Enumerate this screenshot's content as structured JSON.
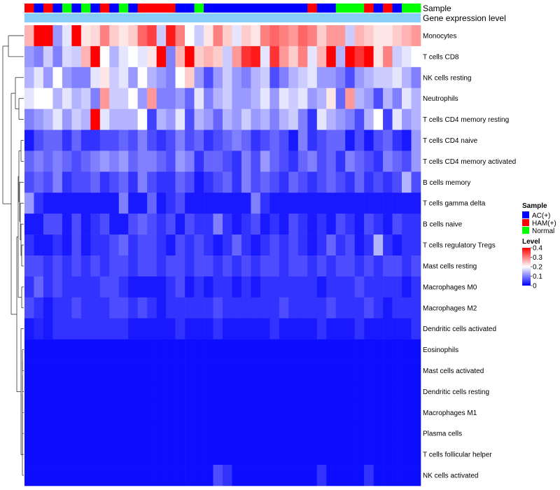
{
  "chart_data": {
    "type": "heatmap",
    "annotation_labels": {
      "sample": "Sample",
      "expression": "Gene expression level"
    },
    "rows": [
      "Monocytes",
      "T cells CD8",
      "NK cells resting",
      "Neutrophils",
      "T cells CD4 memory resting",
      "T cells CD4 naive",
      "T cells CD4 memory activated",
      "B cells memory",
      "T cells gamma delta",
      "B cells naive",
      "T cells regulatory  Tregs",
      "Mast cells resting",
      "Macrophages M0",
      "Macrophages M2",
      "Dendritic cells activated",
      "Eosinophils",
      "Mast cells activated",
      "Dendritic cells resting",
      "Macrophages M1",
      "Plasma cells",
      "T cells follicular helper",
      "NK cells activated"
    ],
    "sample_groups": [
      "HAM(+)",
      "AC(+)",
      "HAM(+)",
      "AC(+)",
      "Normal",
      "AC(+)",
      "Normal",
      "AC(+)",
      "HAM(+)",
      "AC(+)",
      "Normal",
      "AC(+)",
      "HAM(+)",
      "HAM(+)",
      "HAM(+)",
      "HAM(+)",
      "AC(+)",
      "AC(+)",
      "Normal",
      "AC(+)",
      "AC(+)",
      "AC(+)",
      "AC(+)",
      "AC(+)",
      "AC(+)",
      "AC(+)",
      "AC(+)",
      "AC(+)",
      "AC(+)",
      "AC(+)",
      "HAM(+)",
      "AC(+)",
      "AC(+)",
      "Normal",
      "Normal",
      "Normal",
      "HAM(+)",
      "AC(+)",
      "HAM(+)",
      "AC(+)",
      "Normal",
      "Normal"
    ],
    "values": [
      [
        0.26,
        0.4,
        0.4,
        0.12,
        0.18,
        0.4,
        0.22,
        0.23,
        0.3,
        0.24,
        0.22,
        0.24,
        0.32,
        0.35,
        0.16,
        0.38,
        0.3,
        0.2,
        0.16,
        0.22,
        0.3,
        0.24,
        0.18,
        0.24,
        0.22,
        0.3,
        0.32,
        0.3,
        0.28,
        0.32,
        0.3,
        0.24,
        0.28,
        0.28,
        0.16,
        0.26,
        0.24,
        0.22,
        0.22,
        0.24,
        0.26,
        0.28
      ],
      [
        0.12,
        0.1,
        0.16,
        0.1,
        0.17,
        0.16,
        0.26,
        0.4,
        0.2,
        0.14,
        0.18,
        0.2,
        0.18,
        0.22,
        0.4,
        0.1,
        0.26,
        0.4,
        0.24,
        0.26,
        0.24,
        0.16,
        0.28,
        0.36,
        0.38,
        0.18,
        0.36,
        0.28,
        0.24,
        0.3,
        0.18,
        0.26,
        0.4,
        0.14,
        0.4,
        0.36,
        0.4,
        0.22,
        0.3,
        0.16,
        0.18,
        0.2
      ],
      [
        0.14,
        0.18,
        0.12,
        0.2,
        0.12,
        0.1,
        0.1,
        0.18,
        0.22,
        0.16,
        0.18,
        0.12,
        0.2,
        0.14,
        0.12,
        0.1,
        0.2,
        0.24,
        0.12,
        0.06,
        0.12,
        0.16,
        0.12,
        0.1,
        0.14,
        0.16,
        0.06,
        0.1,
        0.14,
        0.16,
        0.18,
        0.12,
        0.12,
        0.1,
        0.06,
        0.12,
        0.14,
        0.16,
        0.16,
        0.18,
        0.14,
        0.1
      ],
      [
        0.18,
        0.2,
        0.2,
        0.14,
        0.18,
        0.14,
        0.16,
        0.1,
        0.28,
        0.16,
        0.16,
        0.2,
        0.12,
        0.28,
        0.1,
        0.1,
        0.12,
        0.08,
        0.18,
        0.1,
        0.14,
        0.16,
        0.12,
        0.12,
        0.14,
        0.18,
        0.12,
        0.18,
        0.16,
        0.18,
        0.12,
        0.14,
        0.22,
        0.08,
        0.28,
        0.14,
        0.12,
        0.06,
        0.14,
        0.1,
        0.18,
        0.14
      ],
      [
        0.1,
        0.12,
        0.14,
        0.18,
        0.12,
        0.16,
        0.14,
        0.4,
        0.18,
        0.14,
        0.14,
        0.14,
        0.2,
        0.05,
        0.14,
        0.12,
        0.18,
        0.06,
        0.14,
        0.12,
        0.08,
        0.14,
        0.12,
        0.16,
        0.12,
        0.14,
        0.1,
        0.14,
        0.16,
        0.1,
        0.04,
        0.18,
        0.14,
        0.12,
        0.1,
        0.06,
        0.14,
        0.2,
        0.05,
        0.18,
        0.12,
        0.14
      ],
      [
        0.02,
        0.06,
        0.08,
        0.08,
        0.04,
        0.08,
        0.04,
        0.04,
        0.06,
        0.06,
        0.08,
        0.06,
        0.1,
        0.06,
        0.04,
        0.06,
        0.1,
        0.06,
        0.08,
        0.04,
        0.06,
        0.08,
        0.1,
        0.08,
        0.04,
        0.06,
        0.08,
        0.06,
        0.02,
        0.1,
        0.04,
        0.06,
        0.08,
        0.08,
        0.02,
        0.06,
        0.02,
        0.06,
        0.08,
        0.04,
        0.02,
        0.12
      ],
      [
        0.08,
        0.1,
        0.08,
        0.1,
        0.08,
        0.06,
        0.08,
        0.1,
        0.12,
        0.1,
        0.12,
        0.08,
        0.1,
        0.1,
        0.08,
        0.06,
        0.12,
        0.1,
        0.04,
        0.08,
        0.08,
        0.06,
        0.04,
        0.1,
        0.06,
        0.12,
        0.08,
        0.06,
        0.04,
        0.08,
        0.1,
        0.06,
        0.08,
        0.04,
        0.1,
        0.08,
        0.06,
        0.04,
        0.1,
        0.08,
        0.06,
        0.12
      ],
      [
        0.06,
        0.08,
        0.06,
        0.1,
        0.04,
        0.06,
        0.06,
        0.08,
        0.04,
        0.06,
        0.08,
        0.04,
        0.1,
        0.06,
        0.04,
        0.04,
        0.08,
        0.06,
        0.02,
        0.04,
        0.06,
        0.08,
        0.04,
        0.1,
        0.06,
        0.08,
        0.06,
        0.04,
        0.08,
        0.06,
        0.04,
        0.06,
        0.08,
        0.06,
        0.04,
        0.08,
        0.04,
        0.06,
        0.04,
        0.06,
        0.14,
        0.06
      ],
      [
        0.12,
        0.04,
        0.02,
        0.02,
        0.02,
        0.02,
        0.02,
        0.02,
        0.02,
        0.02,
        0.1,
        0.02,
        0.02,
        0.08,
        0.02,
        0.04,
        0.06,
        0.02,
        0.02,
        0.02,
        0.02,
        0.02,
        0.02,
        0.02,
        0.1,
        0.04,
        0.02,
        0.02,
        0.02,
        0.02,
        0.02,
        0.02,
        0.02,
        0.02,
        0.02,
        0.02,
        0.02,
        0.02,
        0.02,
        0.02,
        0.02,
        0.02
      ],
      [
        0.02,
        0.02,
        0.06,
        0.06,
        0.02,
        0.06,
        0.02,
        0.04,
        0.06,
        0.02,
        0.02,
        0.06,
        0.08,
        0.06,
        0.04,
        0.06,
        0.02,
        0.06,
        0.04,
        0.04,
        0.1,
        0.04,
        0.02,
        0.04,
        0.06,
        0.02,
        0.04,
        0.02,
        0.06,
        0.04,
        0.02,
        0.04,
        0.02,
        0.06,
        0.04,
        0.02,
        0.06,
        0.04,
        0.02,
        0.06,
        0.04,
        0.04
      ],
      [
        0.04,
        0.02,
        0.02,
        0.04,
        0.02,
        0.06,
        0.02,
        0.04,
        0.04,
        0.06,
        0.08,
        0.04,
        0.06,
        0.06,
        0.04,
        0.02,
        0.06,
        0.04,
        0.06,
        0.04,
        0.02,
        0.04,
        0.08,
        0.04,
        0.02,
        0.04,
        0.06,
        0.04,
        0.06,
        0.04,
        0.02,
        0.04,
        0.08,
        0.04,
        0.06,
        0.02,
        0.04,
        0.14,
        0.04,
        0.02,
        0.04,
        0.04
      ],
      [
        0.06,
        0.06,
        0.04,
        0.06,
        0.04,
        0.06,
        0.04,
        0.06,
        0.04,
        0.06,
        0.06,
        0.04,
        0.06,
        0.06,
        0.04,
        0.06,
        0.06,
        0.04,
        0.06,
        0.06,
        0.04,
        0.06,
        0.04,
        0.06,
        0.04,
        0.06,
        0.06,
        0.04,
        0.06,
        0.06,
        0.04,
        0.06,
        0.04,
        0.06,
        0.06,
        0.04,
        0.06,
        0.04,
        0.06,
        0.06,
        0.04,
        0.06
      ],
      [
        0.04,
        0.08,
        0.04,
        0.06,
        0.04,
        0.04,
        0.04,
        0.04,
        0.06,
        0.06,
        0.04,
        0.02,
        0.02,
        0.02,
        0.02,
        0.04,
        0.06,
        0.02,
        0.04,
        0.02,
        0.04,
        0.04,
        0.02,
        0.04,
        0.02,
        0.04,
        0.04,
        0.04,
        0.04,
        0.04,
        0.04,
        0.02,
        0.04,
        0.04,
        0.04,
        0.06,
        0.04,
        0.04,
        0.04,
        0.04,
        0.02,
        0.04
      ],
      [
        0.06,
        0.04,
        0.02,
        0.04,
        0.04,
        0.06,
        0.04,
        0.04,
        0.04,
        0.06,
        0.06,
        0.04,
        0.06,
        0.04,
        0.02,
        0.04,
        0.04,
        0.04,
        0.04,
        0.04,
        0.06,
        0.04,
        0.04,
        0.04,
        0.04,
        0.04,
        0.04,
        0.06,
        0.04,
        0.04,
        0.04,
        0.04,
        0.06,
        0.04,
        0.04,
        0.04,
        0.06,
        0.04,
        0.02,
        0.04,
        0.04,
        0.04
      ],
      [
        0.02,
        0.03,
        0.02,
        0.04,
        0.04,
        0.04,
        0.04,
        0.04,
        0.04,
        0.04,
        0.04,
        0.02,
        0.02,
        0.02,
        0.02,
        0.02,
        0.04,
        0.02,
        0.02,
        0.02,
        0.04,
        0.02,
        0.02,
        0.02,
        0.02,
        0.02,
        0.04,
        0.02,
        0.02,
        0.02,
        0.02,
        0.04,
        0.02,
        0.02,
        0.02,
        0.04,
        0.02,
        0.02,
        0.02,
        0.02,
        0.02,
        0.04
      ],
      [
        0.01,
        0.01,
        0.01,
        0.01,
        0.01,
        0.01,
        0.01,
        0.01,
        0.01,
        0.01,
        0.01,
        0.01,
        0.01,
        0.01,
        0.01,
        0.01,
        0.01,
        0.01,
        0.01,
        0.01,
        0.01,
        0.01,
        0.01,
        0.01,
        0.01,
        0.01,
        0.01,
        0.01,
        0.01,
        0.01,
        0.01,
        0.01,
        0.01,
        0.01,
        0.01,
        0.01,
        0.01,
        0.01,
        0.01,
        0.01,
        0.01,
        0.01
      ],
      [
        0.01,
        0.01,
        0.01,
        0.01,
        0.01,
        0.01,
        0.01,
        0.01,
        0.01,
        0.01,
        0.01,
        0.01,
        0.01,
        0.01,
        0.01,
        0.01,
        0.01,
        0.01,
        0.01,
        0.01,
        0.01,
        0.01,
        0.01,
        0.01,
        0.01,
        0.01,
        0.01,
        0.01,
        0.01,
        0.01,
        0.01,
        0.01,
        0.01,
        0.01,
        0.01,
        0.01,
        0.01,
        0.01,
        0.01,
        0.01,
        0.01,
        0.01
      ],
      [
        0.01,
        0.01,
        0.01,
        0.01,
        0.01,
        0.01,
        0.01,
        0.01,
        0.01,
        0.01,
        0.01,
        0.01,
        0.01,
        0.01,
        0.01,
        0.01,
        0.01,
        0.01,
        0.01,
        0.01,
        0.01,
        0.01,
        0.01,
        0.01,
        0.01,
        0.01,
        0.01,
        0.01,
        0.01,
        0.01,
        0.01,
        0.01,
        0.01,
        0.01,
        0.01,
        0.01,
        0.01,
        0.01,
        0.01,
        0.01,
        0.01,
        0.01
      ],
      [
        0.01,
        0.01,
        0.01,
        0.01,
        0.01,
        0.01,
        0.01,
        0.01,
        0.01,
        0.01,
        0.01,
        0.01,
        0.01,
        0.01,
        0.01,
        0.01,
        0.01,
        0.01,
        0.01,
        0.01,
        0.01,
        0.01,
        0.01,
        0.01,
        0.01,
        0.01,
        0.01,
        0.01,
        0.01,
        0.01,
        0.01,
        0.01,
        0.01,
        0.01,
        0.01,
        0.01,
        0.01,
        0.01,
        0.01,
        0.01,
        0.01,
        0.01
      ],
      [
        0.01,
        0.01,
        0.01,
        0.01,
        0.01,
        0.01,
        0.01,
        0.01,
        0.01,
        0.01,
        0.01,
        0.01,
        0.01,
        0.01,
        0.01,
        0.01,
        0.01,
        0.01,
        0.01,
        0.01,
        0.01,
        0.01,
        0.01,
        0.01,
        0.01,
        0.01,
        0.01,
        0.01,
        0.01,
        0.01,
        0.01,
        0.01,
        0.01,
        0.01,
        0.01,
        0.01,
        0.01,
        0.01,
        0.01,
        0.01,
        0.01,
        0.01
      ],
      [
        0.01,
        0.01,
        0.01,
        0.01,
        0.01,
        0.01,
        0.01,
        0.01,
        0.01,
        0.01,
        0.01,
        0.01,
        0.01,
        0.01,
        0.01,
        0.01,
        0.01,
        0.01,
        0.01,
        0.01,
        0.01,
        0.01,
        0.01,
        0.01,
        0.01,
        0.01,
        0.01,
        0.01,
        0.01,
        0.01,
        0.01,
        0.01,
        0.01,
        0.01,
        0.01,
        0.01,
        0.01,
        0.01,
        0.01,
        0.01,
        0.01,
        0.01
      ],
      [
        0.01,
        0.01,
        0.01,
        0.01,
        0.01,
        0.01,
        0.01,
        0.01,
        0.01,
        0.01,
        0.01,
        0.01,
        0.01,
        0.01,
        0.01,
        0.01,
        0.01,
        0.01,
        0.01,
        0.01,
        0.06,
        0.04,
        0.01,
        0.01,
        0.01,
        0.01,
        0.01,
        0.01,
        0.01,
        0.01,
        0.01,
        0.04,
        0.01,
        0.01,
        0.01,
        0.01,
        0.04,
        0.01,
        0.01,
        0.01,
        0.01,
        0.01
      ]
    ],
    "legend": {
      "sample_title": "Sample",
      "sample_groups": [
        {
          "name": "AC(+)",
          "color": "#0000ff"
        },
        {
          "name": "HAM(+)",
          "color": "#ff0000"
        },
        {
          "name": "Normal",
          "color": "#00ff00"
        }
      ],
      "level_title": "Level",
      "level_ticks": [
        {
          "value": 0.4,
          "label": "0.4"
        },
        {
          "value": 0.3,
          "label": "0.3"
        },
        {
          "value": 0.2,
          "label": "0.2"
        },
        {
          "value": 0.1,
          "label": "0.1"
        },
        {
          "value": 0.0,
          "label": "0"
        }
      ]
    },
    "color_scale": {
      "low": "#0000ff",
      "mid": "#ffffff",
      "high": "#ff0000",
      "domain": [
        0,
        0.2,
        0.4
      ]
    },
    "expression_bar_color": "#87cefa"
  }
}
